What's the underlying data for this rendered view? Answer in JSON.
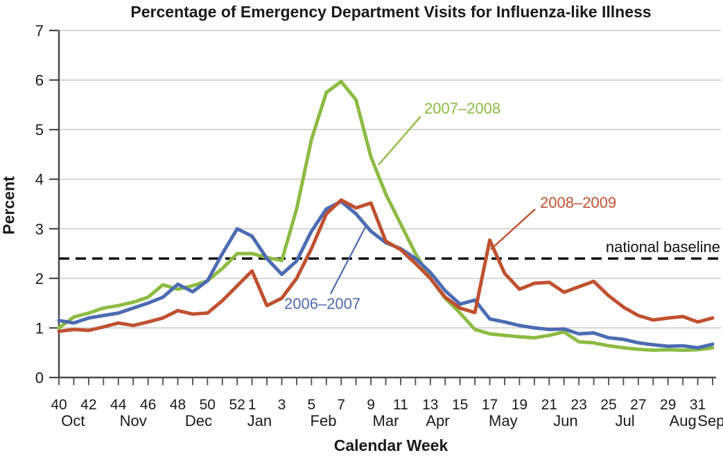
{
  "chart_data": {
    "type": "line",
    "title": "Percentage of Emergency Department Visits for Influenza-like Illness",
    "ylabel": "Percent",
    "xlabel": "Calendar Week",
    "ylim": [
      0,
      7
    ],
    "y_ticks": [
      0,
      1,
      2,
      3,
      4,
      5,
      6,
      7
    ],
    "x_weeks": [
      40,
      41,
      42,
      43,
      44,
      45,
      46,
      47,
      48,
      49,
      50,
      51,
      52,
      1,
      2,
      3,
      4,
      5,
      6,
      7,
      8,
      9,
      10,
      11,
      12,
      13,
      14,
      15,
      16,
      17,
      18,
      19,
      20,
      21,
      22,
      23,
      24,
      25,
      26,
      27,
      28,
      29,
      30,
      31,
      32
    ],
    "week_tick_labels": [
      {
        "i": 0,
        "t": "40"
      },
      {
        "i": 2,
        "t": "42"
      },
      {
        "i": 4,
        "t": "44"
      },
      {
        "i": 6,
        "t": "46"
      },
      {
        "i": 8,
        "t": "48"
      },
      {
        "i": 10,
        "t": "50"
      },
      {
        "i": 12,
        "t": "52"
      },
      {
        "i": 13,
        "t": "1"
      },
      {
        "i": 15,
        "t": "3"
      },
      {
        "i": 17,
        "t": "5"
      },
      {
        "i": 19,
        "t": "7"
      },
      {
        "i": 21,
        "t": "9"
      },
      {
        "i": 23,
        "t": "11"
      },
      {
        "i": 25,
        "t": "13"
      },
      {
        "i": 27,
        "t": "15"
      },
      {
        "i": 29,
        "t": "17"
      },
      {
        "i": 31,
        "t": "19"
      },
      {
        "i": 33,
        "t": "21"
      },
      {
        "i": 35,
        "t": "23"
      },
      {
        "i": 37,
        "t": "25"
      },
      {
        "i": 39,
        "t": "27"
      },
      {
        "i": 41,
        "t": "29"
      },
      {
        "i": 43,
        "t": "31"
      }
    ],
    "month_labels": [
      {
        "i": 0.95,
        "t": "Oct"
      },
      {
        "i": 5.0,
        "t": "Nov"
      },
      {
        "i": 9.4,
        "t": "Dec"
      },
      {
        "i": 13.5,
        "t": "Jan"
      },
      {
        "i": 17.8,
        "t": "Feb"
      },
      {
        "i": 22.0,
        "t": "Mar"
      },
      {
        "i": 25.5,
        "t": "Apr"
      },
      {
        "i": 29.9,
        "t": "May"
      },
      {
        "i": 34.1,
        "t": "Jun"
      },
      {
        "i": 38.1,
        "t": "Jul"
      },
      {
        "i": 42.0,
        "t": "Aug"
      },
      {
        "i": 43.9,
        "t": "Sep"
      }
    ],
    "baseline_value": 2.4,
    "baseline_label": "national baseline",
    "series": [
      {
        "name": "2006–2007",
        "color": "#4B6BB3",
        "values": [
          1.15,
          1.1,
          1.2,
          1.25,
          1.3,
          1.4,
          1.5,
          1.62,
          1.88,
          1.73,
          1.95,
          2.5,
          3.0,
          2.85,
          2.4,
          2.08,
          2.35,
          2.95,
          3.4,
          3.55,
          3.3,
          2.95,
          2.72,
          2.6,
          2.4,
          2.12,
          1.75,
          1.48,
          1.56,
          1.18,
          1.12,
          1.05,
          1.0,
          0.97,
          0.98,
          0.88,
          0.9,
          0.8,
          0.77,
          0.7,
          0.66,
          0.63,
          0.64,
          0.6,
          0.67
        ]
      },
      {
        "name": "2007–2008",
        "color": "#8CBB43",
        "values": [
          1.0,
          1.22,
          1.3,
          1.4,
          1.45,
          1.52,
          1.62,
          1.87,
          1.78,
          1.85,
          1.95,
          2.2,
          2.5,
          2.5,
          2.42,
          2.36,
          3.4,
          4.8,
          5.75,
          5.97,
          5.6,
          4.45,
          3.7,
          3.1,
          2.5,
          2.0,
          1.6,
          1.3,
          0.97,
          0.88,
          0.85,
          0.82,
          0.8,
          0.85,
          0.92,
          0.72,
          0.7,
          0.64,
          0.6,
          0.57,
          0.55,
          0.56,
          0.55,
          0.56,
          0.6
        ]
      },
      {
        "name": "2008–2009",
        "color": "#C0502F",
        "values": [
          0.93,
          0.97,
          0.95,
          1.02,
          1.1,
          1.05,
          1.12,
          1.2,
          1.35,
          1.28,
          1.3,
          1.55,
          1.85,
          2.15,
          1.45,
          1.6,
          2.0,
          2.6,
          3.3,
          3.58,
          3.42,
          3.52,
          2.75,
          2.58,
          2.3,
          2.0,
          1.62,
          1.4,
          1.31,
          2.77,
          2.1,
          1.78,
          1.9,
          1.92,
          1.72,
          1.83,
          1.94,
          1.65,
          1.42,
          1.25,
          1.16,
          1.2,
          1.23,
          1.12,
          1.2
        ]
      }
    ],
    "legend_position": "annotations-on-chart",
    "grid": true,
    "colors": {
      "axis": "#4a4a4a",
      "grid": "#c9c9c9",
      "baseline": "#111111",
      "text": "#1a1a1a"
    }
  }
}
